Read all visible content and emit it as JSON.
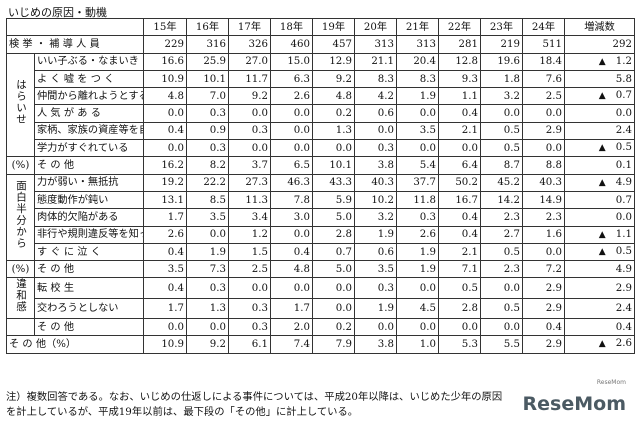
{
  "title": "いじめの原因・動機",
  "years": [
    "15年",
    "16年",
    "17年",
    "18年",
    "19年",
    "20年",
    "21年",
    "22年",
    "23年",
    "24年",
    "増減数"
  ],
  "rows": [
    {
      "label": "検 挙 ・ 補 導 人 員",
      "values": [
        "229",
        "316",
        "326",
        "460",
        "457",
        "313",
        "313",
        "281",
        "219",
        "511"
      ],
      "change_mark": "",
      "change": "292"
    },
    {
      "label": "いい子ぶる・なまいき",
      "values": [
        "16.6",
        "25.9",
        "27.0",
        "15.0",
        "12.9",
        "21.1",
        "20.4",
        "12.8",
        "19.6",
        "18.4"
      ],
      "change_mark": "▲",
      "change": "1.2"
    },
    {
      "label": "よ く 嘘 を つ く",
      "values": [
        "10.9",
        "10.1",
        "11.7",
        "6.3",
        "9.2",
        "8.3",
        "8.3",
        "9.3",
        "1.8",
        "7.6"
      ],
      "change_mark": "",
      "change": "5.8"
    },
    {
      "label": "仲間から離れようとする",
      "values": [
        "4.8",
        "7.0",
        "9.2",
        "2.6",
        "4.8",
        "4.2",
        "1.9",
        "1.1",
        "3.2",
        "2.5"
      ],
      "change_mark": "▲",
      "change": "0.7"
    },
    {
      "label": "人 気 が あ る",
      "values": [
        "0.0",
        "0.3",
        "0.0",
        "0.0",
        "0.2",
        "0.6",
        "0.0",
        "0.4",
        "0.0",
        "0.0"
      ],
      "change_mark": "",
      "change": "0.0"
    },
    {
      "label": "家柄、家族の資産等を自慢",
      "values": [
        "0.4",
        "0.9",
        "0.3",
        "0.0",
        "1.3",
        "0.0",
        "3.5",
        "2.1",
        "0.5",
        "2.9"
      ],
      "change_mark": "",
      "change": "2.4"
    },
    {
      "label": "学力がすぐれている",
      "values": [
        "0.0",
        "0.3",
        "0.0",
        "0.0",
        "0.0",
        "0.3",
        "0.0",
        "0.0",
        "0.5",
        "0.0"
      ],
      "change_mark": "▲",
      "change": "0.5"
    },
    {
      "label": "そ の 他",
      "values": [
        "16.2",
        "8.2",
        "3.7",
        "6.5",
        "10.1",
        "3.8",
        "5.4",
        "6.4",
        "8.7",
        "8.8"
      ],
      "change_mark": "",
      "change": "0.1"
    },
    {
      "label": "力が弱い・無抵抗",
      "values": [
        "19.2",
        "22.2",
        "27.3",
        "46.3",
        "43.3",
        "40.3",
        "37.7",
        "50.2",
        "45.2",
        "40.3"
      ],
      "change_mark": "▲",
      "change": "4.9"
    },
    {
      "label": "態度動作が鈍い",
      "values": [
        "13.1",
        "8.5",
        "11.3",
        "7.8",
        "5.9",
        "10.2",
        "11.8",
        "16.7",
        "14.2",
        "14.9"
      ],
      "change_mark": "",
      "change": "0.7"
    },
    {
      "label": "肉体的欠陥がある",
      "values": [
        "1.7",
        "3.5",
        "3.4",
        "3.0",
        "5.0",
        "3.2",
        "0.3",
        "0.4",
        "2.3",
        "2.3"
      ],
      "change_mark": "",
      "change": "0.0"
    },
    {
      "label": "非行や規則違反等を知って",
      "values": [
        "2.6",
        "0.0",
        "1.2",
        "0.0",
        "2.8",
        "1.9",
        "2.6",
        "0.4",
        "2.7",
        "1.6"
      ],
      "change_mark": "▲",
      "change": "1.1"
    },
    {
      "label": "す ぐ に 泣 く",
      "values": [
        "0.4",
        "1.9",
        "1.5",
        "0.4",
        "0.7",
        "0.6",
        "1.9",
        "2.1",
        "0.5",
        "0.0"
      ],
      "change_mark": "▲",
      "change": "0.5"
    },
    {
      "label": "そ の 他",
      "values": [
        "3.5",
        "7.3",
        "2.5",
        "4.8",
        "5.0",
        "3.5",
        "1.9",
        "7.1",
        "2.3",
        "7.2"
      ],
      "change_mark": "",
      "change": "4.9"
    },
    {
      "label": "転 校 生",
      "values": [
        "0.4",
        "0.3",
        "0.0",
        "0.0",
        "0.0",
        "0.3",
        "0.0",
        "0.5",
        "0.0",
        "2.9"
      ],
      "change_mark": "",
      "change": "2.9"
    },
    {
      "label": "交わろうとしない",
      "values": [
        "1.7",
        "1.3",
        "0.3",
        "1.7",
        "0.0",
        "1.9",
        "4.5",
        "2.8",
        "0.5",
        "2.9"
      ],
      "change_mark": "",
      "change": "2.4"
    },
    {
      "label": "そ の 他",
      "values": [
        "0.0",
        "0.0",
        "0.3",
        "2.0",
        "0.2",
        "0.0",
        "0.0",
        "0.0",
        "0.0",
        "0.4"
      ],
      "change_mark": "",
      "change": "0.4"
    },
    {
      "label": "そ の 他（%）",
      "values": [
        "10.9",
        "9.2",
        "6.1",
        "7.4",
        "7.9",
        "3.8",
        "1.0",
        "5.3",
        "5.5",
        "2.9"
      ],
      "change_mark": "▲",
      "change": "2.6"
    }
  ],
  "groups": {
    "harainase": "はらいせ",
    "omoshiro": "面白半分から",
    "iwakan": "違和感",
    "pct": "(%)"
  },
  "note": {
    "line1": "注）複数回答である。なお、いじめの仕返しによる事件については、平成20年以降は、いじめた少年の原因",
    "line2": "を計上しているが、平成19年以前は、最下段の「その他」に計上している。"
  },
  "logo": "ReseMom",
  "logo_sub": "ReseMom",
  "colors": {
    "line": "#333333",
    "logo": "#4b5a63"
  }
}
